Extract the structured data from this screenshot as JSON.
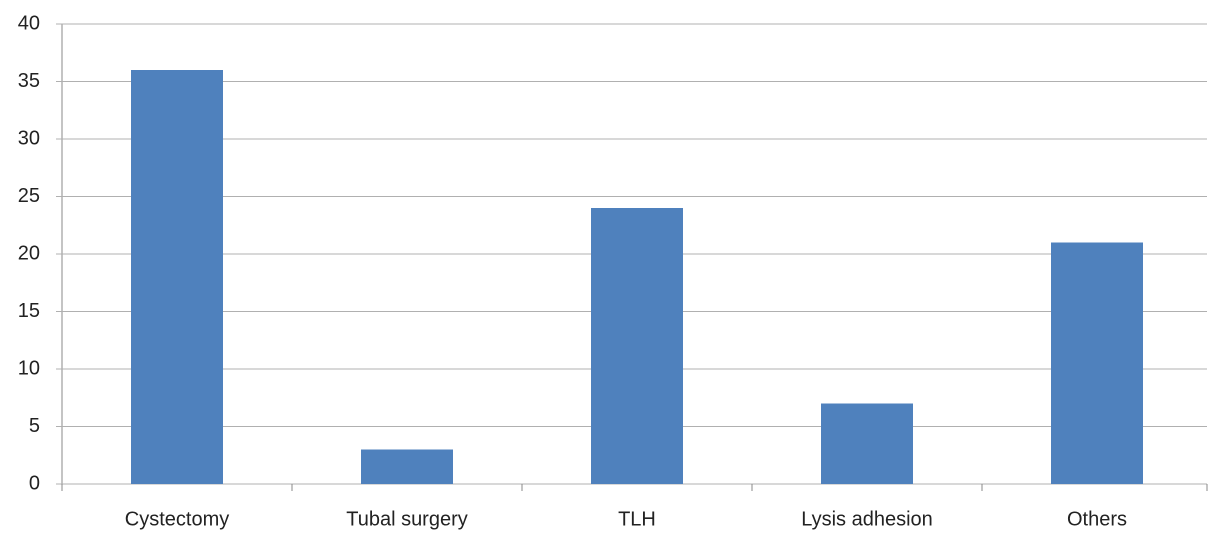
{
  "chart_data": {
    "type": "bar",
    "categories": [
      "Cystectomy",
      "Tubal surgery",
      "TLH",
      "Lysis adhesion",
      "Others"
    ],
    "values": [
      36,
      3,
      24,
      7,
      21
    ],
    "color": "#4f81bd",
    "ylim": [
      0,
      40
    ],
    "yticks": [
      0,
      5,
      10,
      15,
      20,
      25,
      30,
      35,
      40
    ],
    "grid": true
  }
}
